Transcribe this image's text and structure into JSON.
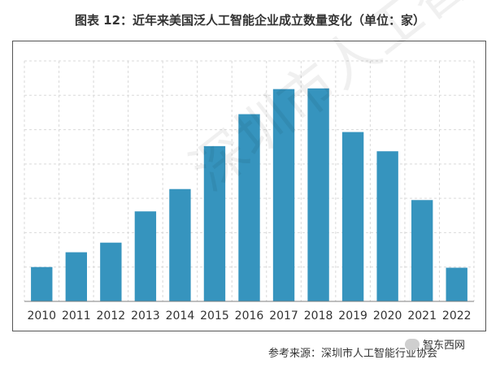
{
  "title": "图表 12：近年来美国泛人工智能企业成立数量变化（单位：家）",
  "source": "参考来源：深圳市人工智能行业协会",
  "wechat_label": "智东西网",
  "watermark": "深圳市人工智能行业协会",
  "colors": {
    "bar": "#3694BE",
    "grid": "#D9D9D9",
    "axis": "#7F7F7F",
    "text": "#333333"
  },
  "chart_data": {
    "type": "bar",
    "title": "图表 12：近年来美国泛人工智能企业成立数量变化（单位：家）",
    "xlabel": "",
    "ylabel": "",
    "categories": [
      "2010",
      "2011",
      "2012",
      "2013",
      "2014",
      "2015",
      "2016",
      "2017",
      "2018",
      "2019",
      "2020",
      "2021",
      "2022"
    ],
    "values": [
      100,
      143,
      171,
      262,
      327,
      452,
      545,
      618,
      620,
      493,
      437,
      295,
      98
    ],
    "ylim": [
      0,
      700
    ],
    "grid": true,
    "legend": "none",
    "y_tick_labels": "none"
  }
}
